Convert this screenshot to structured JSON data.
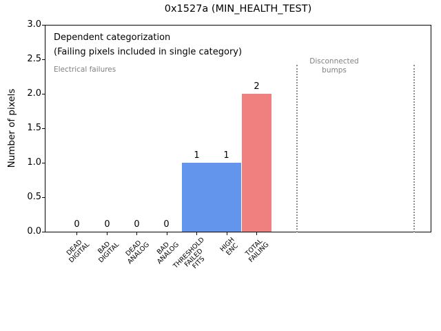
{
  "title": "0x1527a (MIN_HEALTH_TEST)",
  "chart_data": {
    "type": "bar",
    "title": "0x1527a (MIN_HEALTH_TEST)",
    "xlabel": "",
    "ylabel": "Number of pixels",
    "categories": [
      "DEAD\nDIGITAL",
      "BAD\nDIGITAL",
      "DEAD\nANALOG",
      "BAD\nANALOG",
      "THRESHOLD\nFAILED\nFITS",
      "HIGH\nENC",
      "TOTAL\nFAILING"
    ],
    "values": [
      0,
      0,
      0,
      0,
      1,
      1,
      2
    ],
    "bar_labels": [
      "0",
      "0",
      "0",
      "0",
      "1",
      "1",
      "2"
    ],
    "bar_colors": [
      "#6495ed",
      "#6495ed",
      "#6495ed",
      "#6495ed",
      "#6495ed",
      "#6495ed",
      "#f08080"
    ],
    "ytick_labels": [
      "0.0",
      "0.5",
      "1.0",
      "1.5",
      "2.0",
      "2.5",
      "3.0"
    ],
    "ylim": [
      0,
      3
    ],
    "grid": false,
    "legend": "none",
    "annotations": [
      {
        "text": "Dependent categorization",
        "color": "#000000"
      },
      {
        "text": "(Failing pixels included in single category)",
        "color": "#000000"
      },
      {
        "text": "Electrical failures",
        "color": "#808080"
      },
      {
        "text": "Disconnected\nbumps",
        "color": "#808080"
      }
    ],
    "dividers": {
      "style": "dotted",
      "color": "#8c8c8c",
      "count": 2
    }
  }
}
